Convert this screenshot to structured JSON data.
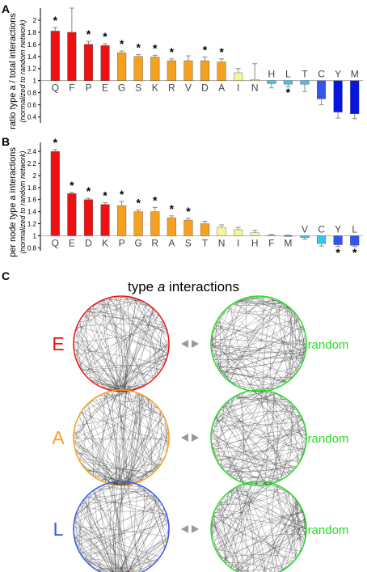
{
  "colors": {
    "red": "#ee1111",
    "orange": "#f5a020",
    "pale": "#f5f59a",
    "cyan": "#33c8f0",
    "blue": "#3355ee",
    "darkblue": "#0a14e0",
    "green": "#22dd22",
    "star": "#000000",
    "lines": "#333333"
  },
  "chart_data": [
    {
      "type": "bar",
      "panel": "A",
      "ylabel": "ratio type a / total interactions",
      "ylabel_sub": "(normalized to random network)",
      "baseline": 1,
      "ylim": [
        0.3,
        2.2
      ],
      "yticks": [
        0.4,
        0.6,
        0.8,
        1,
        1.2,
        1.4,
        1.6,
        1.8,
        2
      ],
      "ytick_labels": [
        "0.4",
        "0.6",
        "0.8",
        "1",
        "1.2",
        "1.4",
        "1.6",
        "1.8",
        "2"
      ],
      "categories": [
        "Q",
        "F",
        "P",
        "E",
        "G",
        "S",
        "K",
        "R",
        "V",
        "D",
        "A",
        "I",
        "N",
        "H",
        "L",
        "T",
        "C",
        "Y",
        "M"
      ],
      "values": [
        1.82,
        1.8,
        1.6,
        1.58,
        1.46,
        1.4,
        1.39,
        1.33,
        1.33,
        1.33,
        1.31,
        1.13,
        1.02,
        0.95,
        0.94,
        0.94,
        0.7,
        0.48,
        0.45
      ],
      "errors": [
        0.06,
        0.4,
        0.05,
        0.03,
        0.03,
        0.03,
        0.03,
        0.03,
        0.08,
        0.06,
        0.05,
        0.07,
        0.26,
        0.07,
        0.04,
        0.12,
        0.1,
        0.1,
        0.08
      ],
      "significant": [
        true,
        false,
        true,
        true,
        true,
        true,
        true,
        true,
        false,
        true,
        true,
        false,
        false,
        false,
        true,
        false,
        false,
        false,
        false
      ],
      "bar_colors": [
        "red",
        "red",
        "red",
        "red",
        "orange",
        "orange",
        "orange",
        "orange",
        "orange",
        "orange",
        "orange",
        "pale",
        "pale",
        "cyan",
        "cyan",
        "cyan",
        "blue",
        "darkblue",
        "darkblue"
      ]
    },
    {
      "type": "bar",
      "panel": "B",
      "ylabel": "per node type a interactions",
      "ylabel_sub": "(normalized to random network)",
      "baseline": 1,
      "ylim": [
        0.75,
        2.55
      ],
      "yticks": [
        0.8,
        1,
        1.2,
        1.4,
        1.6,
        1.8,
        2,
        2.2,
        2.4
      ],
      "ytick_labels": [
        "0.8",
        "1",
        "1.2",
        "1.4",
        "1.6",
        "1.8",
        "2",
        "2.2",
        "2.4"
      ],
      "categories": [
        "Q",
        "E",
        "D",
        "K",
        "P",
        "G",
        "R",
        "A",
        "S",
        "T",
        "N",
        "I",
        "H",
        "F",
        "M",
        "V",
        "C",
        "Y",
        "L"
      ],
      "values": [
        2.4,
        1.7,
        1.6,
        1.52,
        1.5,
        1.4,
        1.4,
        1.3,
        1.26,
        1.2,
        1.14,
        1.1,
        1.05,
        1.01,
        1.0,
        0.97,
        0.87,
        0.85,
        0.84
      ],
      "errors": [
        0.03,
        0.02,
        0.02,
        0.03,
        0.07,
        0.03,
        0.07,
        0.03,
        0.03,
        0.04,
        0.04,
        0.04,
        0.04,
        0.01,
        0.01,
        0.03,
        0.04,
        0.03,
        0.02
      ],
      "significant": [
        true,
        true,
        true,
        true,
        true,
        true,
        true,
        true,
        true,
        false,
        false,
        false,
        false,
        false,
        false,
        false,
        false,
        true,
        true
      ],
      "bar_colors": [
        "red",
        "red",
        "red",
        "red",
        "orange",
        "orange",
        "orange",
        "orange",
        "orange",
        "orange",
        "pale",
        "pale",
        "pale",
        "pale",
        "blue",
        "cyan",
        "cyan",
        "blue",
        "blue"
      ]
    }
  ],
  "panel_c": {
    "letter": "C",
    "title_prefix": "type ",
    "title_italic": "a",
    "title_suffix": " interactions",
    "random_label": "random",
    "rows": [
      {
        "label": "E",
        "color": "red"
      },
      {
        "label": "A",
        "color": "orange"
      },
      {
        "label": "L",
        "color": "blue"
      }
    ]
  }
}
